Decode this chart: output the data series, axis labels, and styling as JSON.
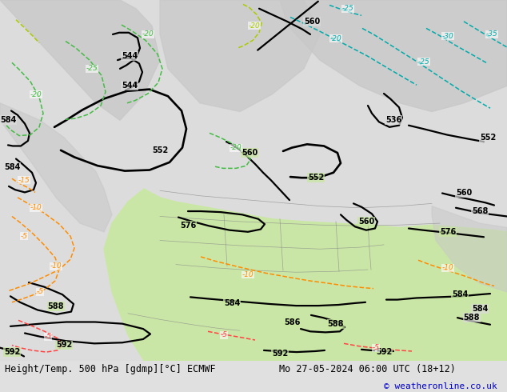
{
  "title_left": "Height/Temp. 500 hPa [gdmp][°C] ECMWF",
  "title_right": "Mo 27-05-2024 06:00 UTC (18+12)",
  "copyright": "© weatheronline.co.uk",
  "bg_color": "#e8e8e8",
  "land_color_north": "#d0d0d0",
  "land_color_south": "#c8e8a0",
  "ocean_color": "#e8e8e8",
  "title_fontsize": 9,
  "copyright_color": "#0000cc",
  "fig_width": 6.34,
  "fig_height": 4.9
}
